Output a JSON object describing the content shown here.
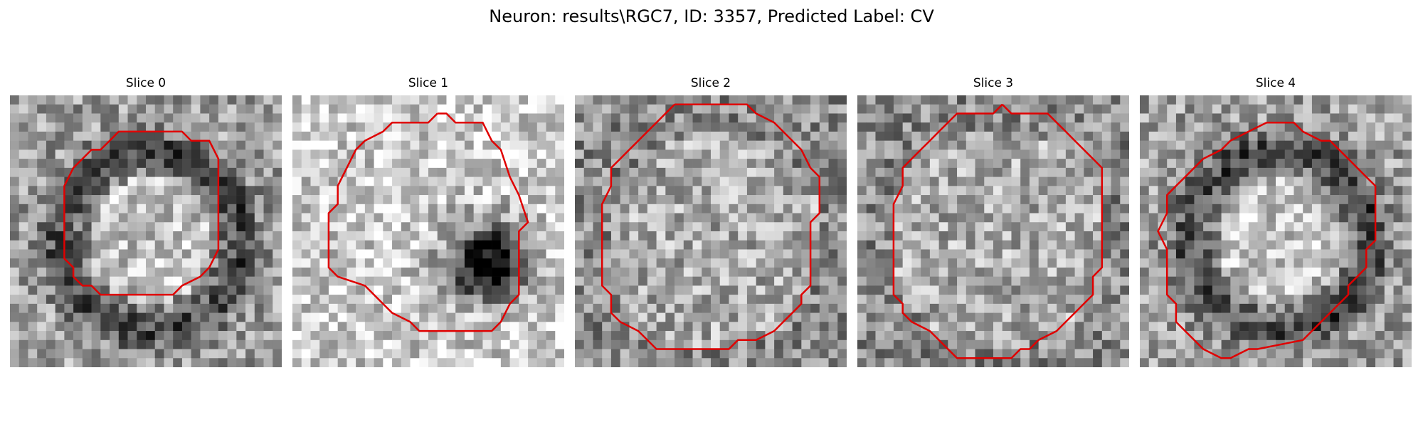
{
  "figure": {
    "title": "Neuron: results\\RGC7, ID: 3357, Predicted Label: CV"
  },
  "panels": [
    {
      "title": "Slice 0",
      "image_name": "slice-0-image",
      "seed": 101,
      "dark_ring": true,
      "dark_blob": false
    },
    {
      "title": "Slice 1",
      "image_name": "slice-1-image",
      "seed": 202,
      "dark_ring": false,
      "dark_blob": true
    },
    {
      "title": "Slice 2",
      "image_name": "slice-2-image",
      "seed": 303,
      "dark_ring": false,
      "dark_blob": false
    },
    {
      "title": "Slice 3",
      "image_name": "slice-3-image",
      "seed": 404,
      "dark_ring": false,
      "dark_blob": false
    },
    {
      "title": "Slice 4",
      "image_name": "slice-4-image",
      "seed": 505,
      "dark_ring": true,
      "dark_blob": false
    }
  ],
  "colors": {
    "outline": "#e00000",
    "background": "#ffffff"
  }
}
